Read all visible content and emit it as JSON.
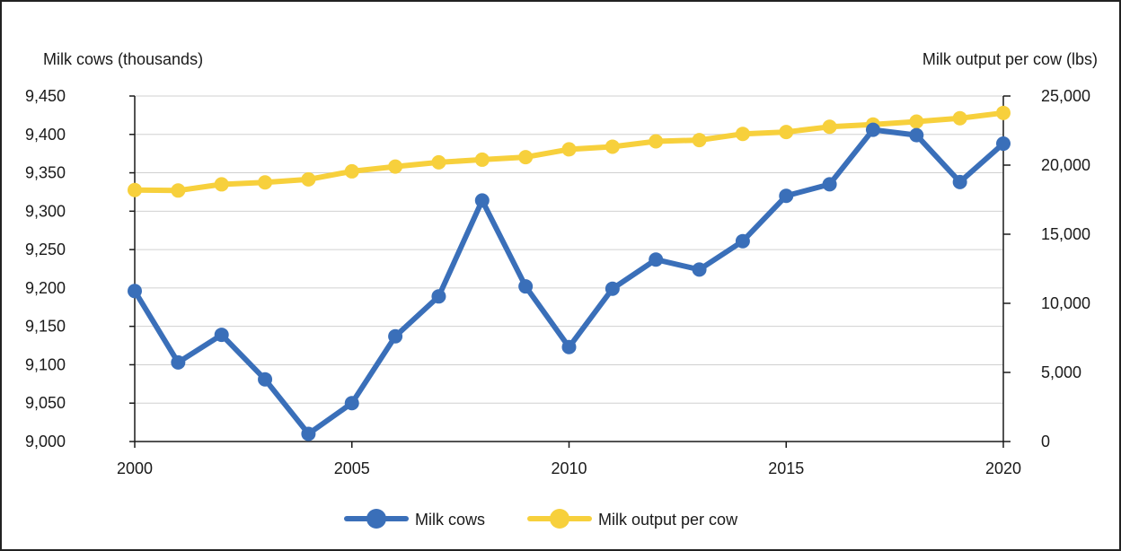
{
  "chart_data": {
    "type": "line",
    "title": "",
    "ylabel_left": "Milk cows (thousands)",
    "ylabel_right": "Milk output per cow (lbs)",
    "x": [
      2000,
      2001,
      2002,
      2003,
      2004,
      2005,
      2006,
      2007,
      2008,
      2009,
      2010,
      2011,
      2012,
      2013,
      2014,
      2015,
      2016,
      2017,
      2018,
      2019,
      2020
    ],
    "x_ticks": [
      "2000",
      "2005",
      "2010",
      "2015",
      "2020"
    ],
    "x_range": [
      2000,
      2020
    ],
    "y_left_ticks": [
      "9,000",
      "9,050",
      "9,100",
      "9,150",
      "9,200",
      "9,250",
      "9,300",
      "9,350",
      "9,400",
      "9,450"
    ],
    "y_left_range": [
      9000,
      9450
    ],
    "y_right_ticks": [
      "0",
      "5,000",
      "10,000",
      "15,000",
      "20,000",
      "25,000"
    ],
    "y_right_range": [
      0,
      25000
    ],
    "grid": "horizontal",
    "legend_position": "bottom",
    "series": [
      {
        "name": "Milk cows",
        "axis": "left",
        "color": "#3a6fb9",
        "values": [
          9196,
          9103,
          9139,
          9081,
          9010,
          9050,
          9137,
          9189,
          9314,
          9202,
          9123,
          9199,
          9237,
          9224,
          9261,
          9320,
          9335,
          9406,
          9399,
          9338,
          9388
        ]
      },
      {
        "name": "Milk output per cow",
        "axis": "right",
        "color": "#f7d03c",
        "values": [
          18197,
          18162,
          18608,
          18749,
          18968,
          19550,
          19895,
          20204,
          20395,
          20576,
          21142,
          21334,
          21722,
          21814,
          22259,
          22393,
          22775,
          22941,
          23149,
          23391,
          23777
        ]
      }
    ]
  }
}
